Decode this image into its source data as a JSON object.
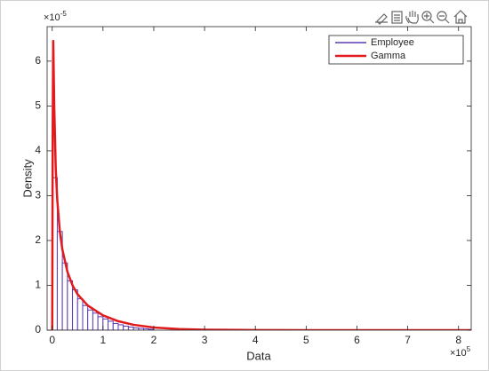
{
  "chart_data": {
    "type": "histogram",
    "xlabel": "Data",
    "ylabel": "Density",
    "x_exponent": {
      "base": "×10",
      "power": "5"
    },
    "y_exponent": {
      "base": "×10",
      "power": "-5"
    },
    "xlim": [
      -0.1,
      8.25
    ],
    "ylim": [
      0,
      6.77
    ],
    "xticks": [
      0,
      1,
      2,
      3,
      4,
      5,
      6,
      7,
      8
    ],
    "yticks": [
      0,
      1,
      2,
      3,
      4,
      5,
      6
    ],
    "legend": "upper right",
    "series": [
      {
        "name": "Employee",
        "type": "histogram",
        "color": "#5b3bb5",
        "bins": [
          0,
          0.1,
          0.2,
          0.3,
          0.4,
          0.5,
          0.6,
          0.7,
          0.8,
          0.9,
          1.0,
          1.1,
          1.2,
          1.3,
          1.4,
          1.5,
          1.6,
          1.7,
          1.8,
          1.9,
          2.0
        ],
        "values": [
          3.4,
          2.2,
          1.5,
          1.1,
          0.9,
          0.7,
          0.55,
          0.45,
          0.38,
          0.3,
          0.25,
          0.2,
          0.15,
          0.12,
          0.09,
          0.07,
          0.05,
          0.04,
          0.03,
          0.02
        ]
      },
      {
        "name": "Gamma",
        "type": "line",
        "color": "#e31a1c",
        "x": [
          0,
          0.01,
          0.02,
          0.04,
          0.07,
          0.1,
          0.15,
          0.2,
          0.3,
          0.4,
          0.5,
          0.7,
          1.0,
          1.3,
          1.6,
          2.0,
          2.5,
          3,
          4,
          5,
          6,
          7,
          8,
          8.25
        ],
        "values": [
          0,
          4.5,
          6.45,
          5.0,
          3.6,
          2.9,
          2.2,
          1.8,
          1.3,
          1.0,
          0.8,
          0.55,
          0.33,
          0.2,
          0.12,
          0.06,
          0.025,
          0.01,
          0.002,
          0,
          0,
          0,
          0,
          0
        ]
      }
    ]
  }
}
